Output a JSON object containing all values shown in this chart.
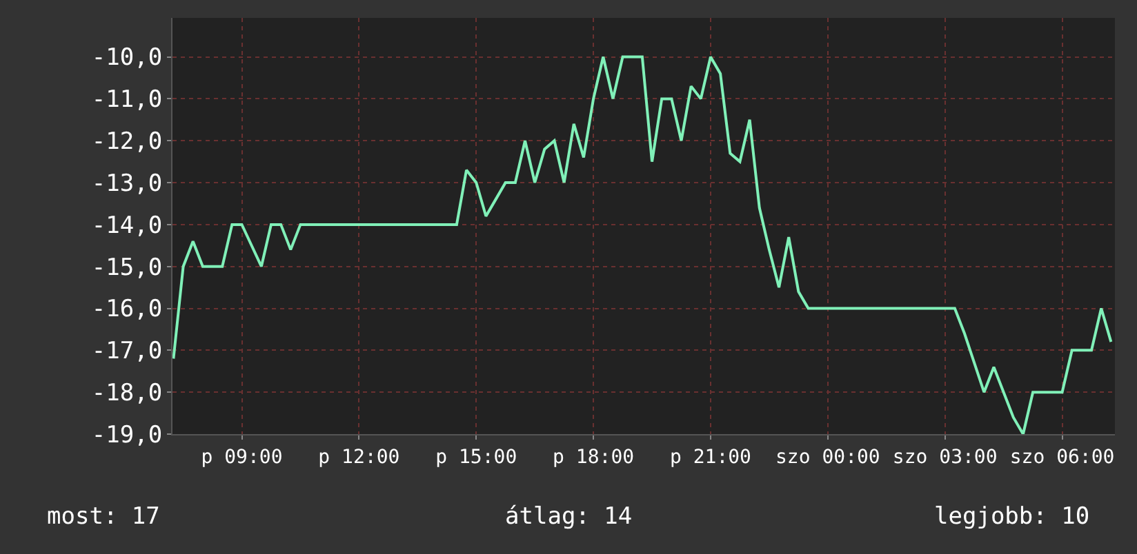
{
  "chart_data": {
    "type": "line",
    "categories": [
      null,
      null,
      null,
      null,
      null,
      null,
      null,
      "p 09:00",
      null,
      null,
      null,
      null,
      null,
      null,
      null,
      null,
      null,
      null,
      null,
      "p 12:00",
      null,
      null,
      null,
      null,
      null,
      null,
      null,
      null,
      null,
      null,
      null,
      "p 15:00",
      null,
      null,
      null,
      null,
      null,
      null,
      null,
      null,
      null,
      null,
      null,
      "p 18:00",
      null,
      null,
      null,
      null,
      null,
      null,
      null,
      null,
      null,
      null,
      null,
      "p 21:00",
      null,
      null,
      null,
      null,
      null,
      null,
      null,
      null,
      null,
      null,
      null,
      "szo 00:00",
      null,
      null,
      null,
      null,
      null,
      null,
      null,
      null,
      null,
      null,
      null,
      "szo 03:00",
      null,
      null,
      null,
      null,
      null,
      null,
      null,
      null,
      null,
      null,
      null,
      "szo 06:00",
      null,
      null,
      null,
      null,
      null
    ],
    "series": [
      {
        "color": "#80f0b8",
        "values": [
          -17.2,
          -15.0,
          -14.4,
          -15.0,
          -15.0,
          -15.0,
          -14.0,
          -14.0,
          -14.5,
          -15.0,
          -14.0,
          -14.0,
          -14.6,
          -14.0,
          -14.0,
          -14.0,
          -14.0,
          -14.0,
          -14.0,
          -14.0,
          -14.0,
          -14.0,
          -14.0,
          -14.0,
          -14.0,
          -14.0,
          -14.0,
          -14.0,
          -14.0,
          -14.0,
          -12.7,
          -13.0,
          -13.8,
          -13.4,
          -13.0,
          -13.0,
          -12.0,
          -13.0,
          -12.2,
          -12.0,
          -13.0,
          -11.6,
          -12.4,
          -11.0,
          -10.0,
          -11.0,
          -10.0,
          -10.0,
          -10.0,
          -12.5,
          -11.0,
          -11.0,
          -12.0,
          -10.7,
          -11.0,
          -10.0,
          -10.4,
          -12.3,
          -12.5,
          -11.5,
          -13.6,
          -14.6,
          -15.5,
          -14.3,
          -15.6,
          -16.0,
          -16.0,
          -16.0,
          -16.0,
          -16.0,
          -16.0,
          -16.0,
          -16.0,
          -16.0,
          -16.0,
          -16.0,
          -16.0,
          -16.0,
          -16.0,
          -16.0,
          -16.0,
          -16.6,
          -17.3,
          -18.0,
          -17.4,
          -18.0,
          -18.6,
          -19.0,
          -18.0,
          -18.0,
          -18.0,
          -18.0,
          -17.0,
          -17.0,
          -17.0,
          -16.0,
          -16.8
        ]
      }
    ],
    "ylim": [
      -19,
      -9.07
    ],
    "yticks": [
      {
        "value": -19,
        "label": "-19,0"
      },
      {
        "value": -18,
        "label": "-18,0"
      },
      {
        "value": -17,
        "label": "-17,0"
      },
      {
        "value": -16,
        "label": "-16,0"
      },
      {
        "value": -15,
        "label": "-15,0"
      },
      {
        "value": -14,
        "label": "-14,0"
      },
      {
        "value": -13,
        "label": "-13,0"
      },
      {
        "value": -12,
        "label": "-12,0"
      },
      {
        "value": -11,
        "label": "-11,0"
      },
      {
        "value": -10,
        "label": "-10,0"
      }
    ],
    "grid": true,
    "annotations": [
      "most: 17",
      "átlag: 14",
      "legjobb: 10"
    ]
  }
}
